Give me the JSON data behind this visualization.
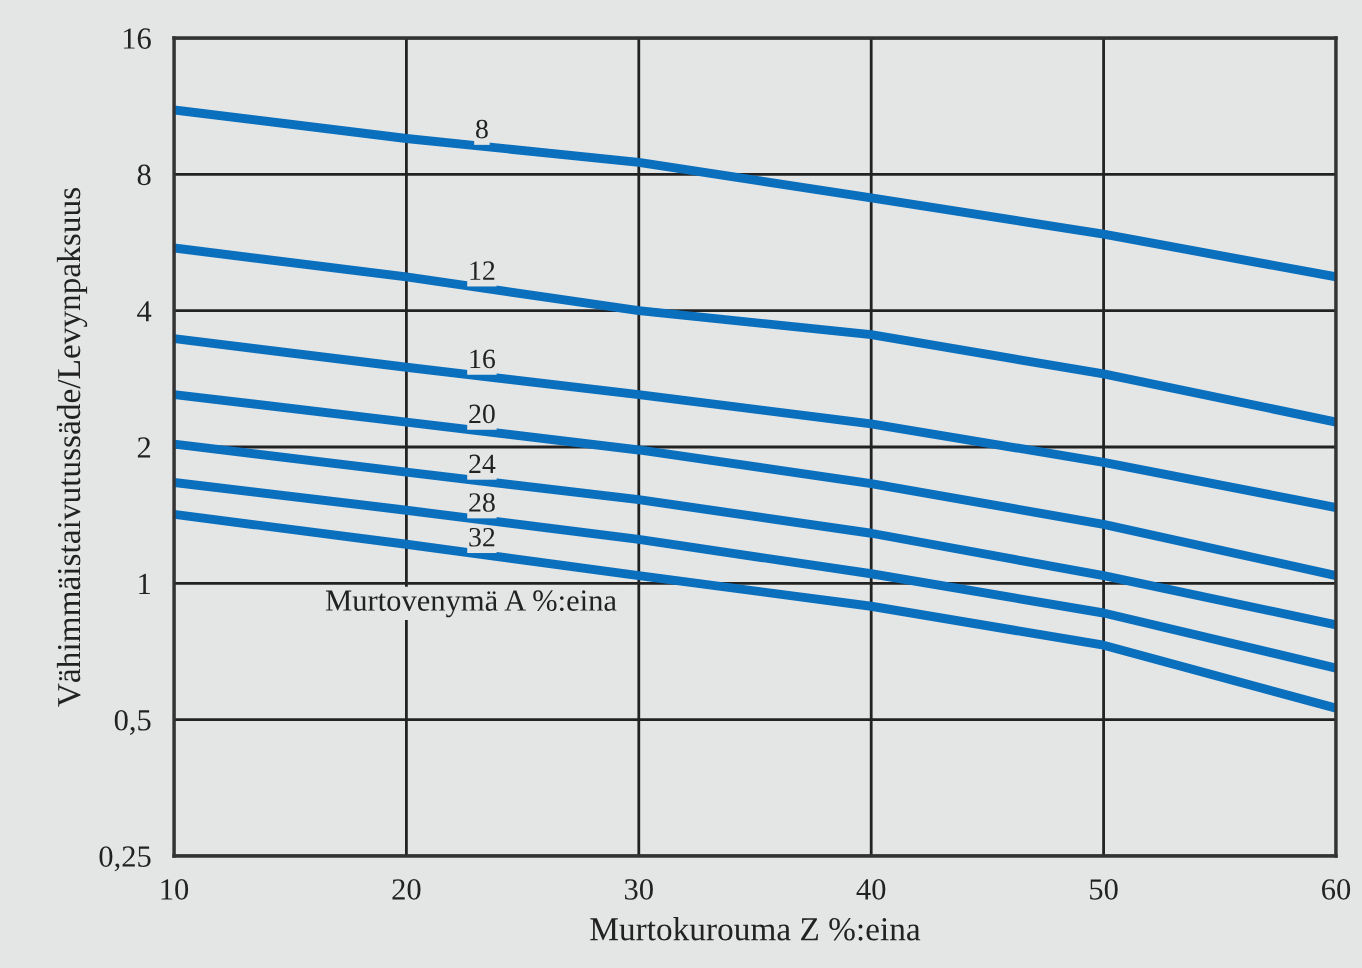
{
  "chart_data": {
    "type": "line",
    "xlabel": "Murtokurouma Z %:eina",
    "ylabel": "Vähimmäistaivutussäde/Levynpaksuus",
    "x": [
      10,
      20,
      30,
      40,
      50,
      60
    ],
    "series": [
      {
        "name": "8",
        "color": "#0a6fbd",
        "values": [
          11.1,
          9.6,
          8.5,
          7.1,
          5.9,
          4.75
        ]
      },
      {
        "name": "12",
        "color": "#0a6fbd",
        "values": [
          5.5,
          4.75,
          4.0,
          3.54,
          2.9,
          2.27
        ]
      },
      {
        "name": "16",
        "color": "#0a6fbd",
        "values": [
          3.47,
          3.0,
          2.61,
          2.25,
          1.85,
          1.47
        ]
      },
      {
        "name": "20",
        "color": "#0a6fbd",
        "values": [
          2.61,
          2.27,
          1.97,
          1.66,
          1.35,
          1.04
        ]
      },
      {
        "name": "24",
        "color": "#0a6fbd",
        "values": [
          2.03,
          1.76,
          1.53,
          1.29,
          1.04,
          0.81
        ]
      },
      {
        "name": "28",
        "color": "#0a6fbd",
        "values": [
          1.67,
          1.45,
          1.25,
          1.05,
          0.86,
          0.65
        ]
      },
      {
        "name": "32",
        "color": "#0a6fbd",
        "values": [
          1.42,
          1.22,
          1.04,
          0.89,
          0.73,
          0.53
        ]
      }
    ],
    "log": "y",
    "xlim": [
      10,
      60
    ],
    "ylim": [
      0.25,
      16
    ],
    "xticks": [
      10,
      20,
      30,
      40,
      50,
      60
    ],
    "yticks": [
      {
        "value": 0.25,
        "label": "0,25"
      },
      {
        "value": 0.5,
        "label": "0,5"
      },
      1,
      2,
      4,
      8,
      16
    ],
    "grid": true,
    "legend": false,
    "marker": "none",
    "line_style": "solid",
    "annotations": [
      "Murtovenymä A %:eina"
    ]
  }
}
